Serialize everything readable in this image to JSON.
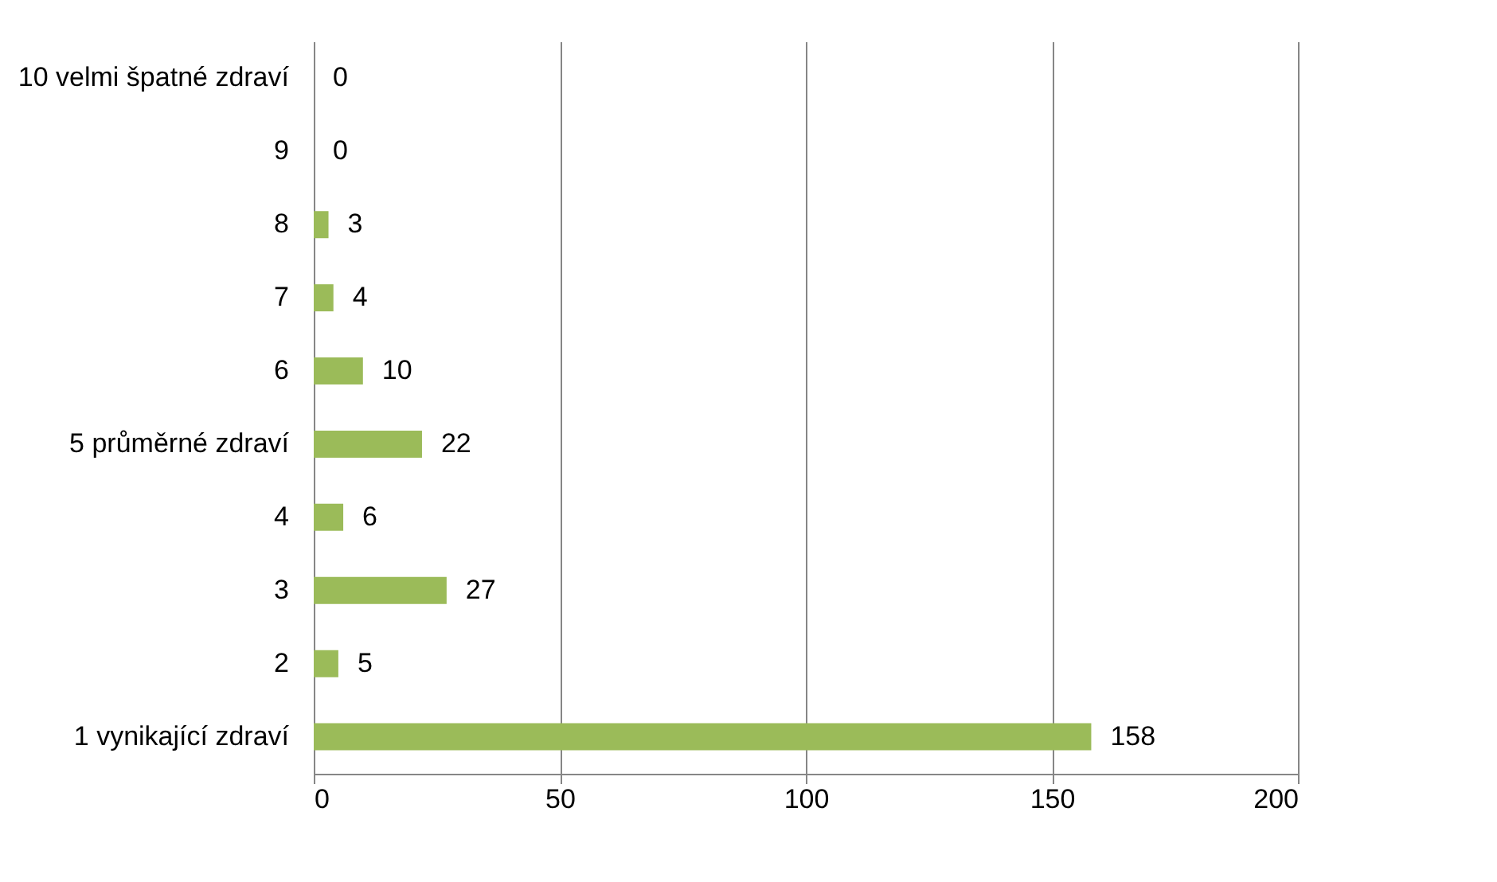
{
  "chart_data": {
    "type": "bar",
    "orientation": "horizontal",
    "categories": [
      "10 velmi špatné zdraví",
      "9",
      "8",
      "7",
      "6",
      "5 průměrné zdraví",
      "4",
      "3",
      "2",
      "1 vynikající zdraví"
    ],
    "values": [
      0,
      0,
      3,
      4,
      10,
      22,
      6,
      27,
      5,
      158
    ],
    "color": "#9bbb59",
    "xlim": [
      0,
      200
    ],
    "xticks": [
      0,
      50,
      100,
      150,
      200
    ],
    "grid": "x",
    "data_labels": true
  }
}
